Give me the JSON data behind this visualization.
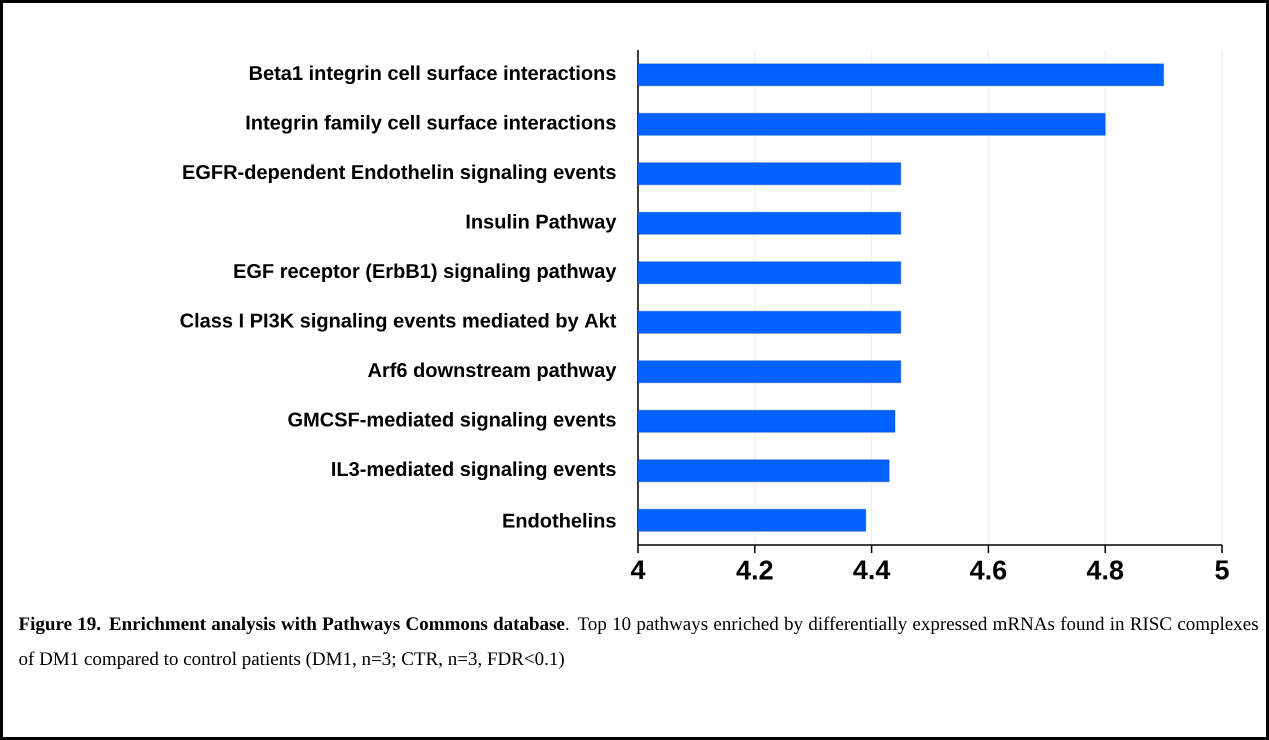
{
  "chart_data": {
    "type": "bar",
    "orientation": "horizontal",
    "categories": [
      "Beta1 integrin cell surface interactions",
      "Integrin family cell surface interactions",
      "EGFR-dependent Endothelin signaling events",
      "Insulin Pathway",
      "EGF receptor (ErbB1) signaling pathway",
      "Class I PI3K signaling events mediated by Akt",
      "Arf6 downstream pathway",
      "GMCSF-mediated signaling events",
      "IL3-mediated signaling events",
      "Endothelins"
    ],
    "values": [
      4.9,
      4.8,
      4.45,
      4.45,
      4.45,
      4.45,
      4.45,
      4.44,
      4.43,
      4.39
    ],
    "color": "#0062ff",
    "xlim": [
      4,
      5
    ],
    "xticks": [
      4,
      4.2,
      4.4,
      4.6,
      4.8,
      5
    ],
    "grid": "x",
    "annotations": [
      "**Figure 19. Enrichment analysis with Pathways Commons database**. Top 10 pathways enriched by differentially expressed mRNAs found in RISC complexes of DM1 compared to control patients (DM1, n=3; CTR, n=3, FDR<0.1)"
    ]
  }
}
